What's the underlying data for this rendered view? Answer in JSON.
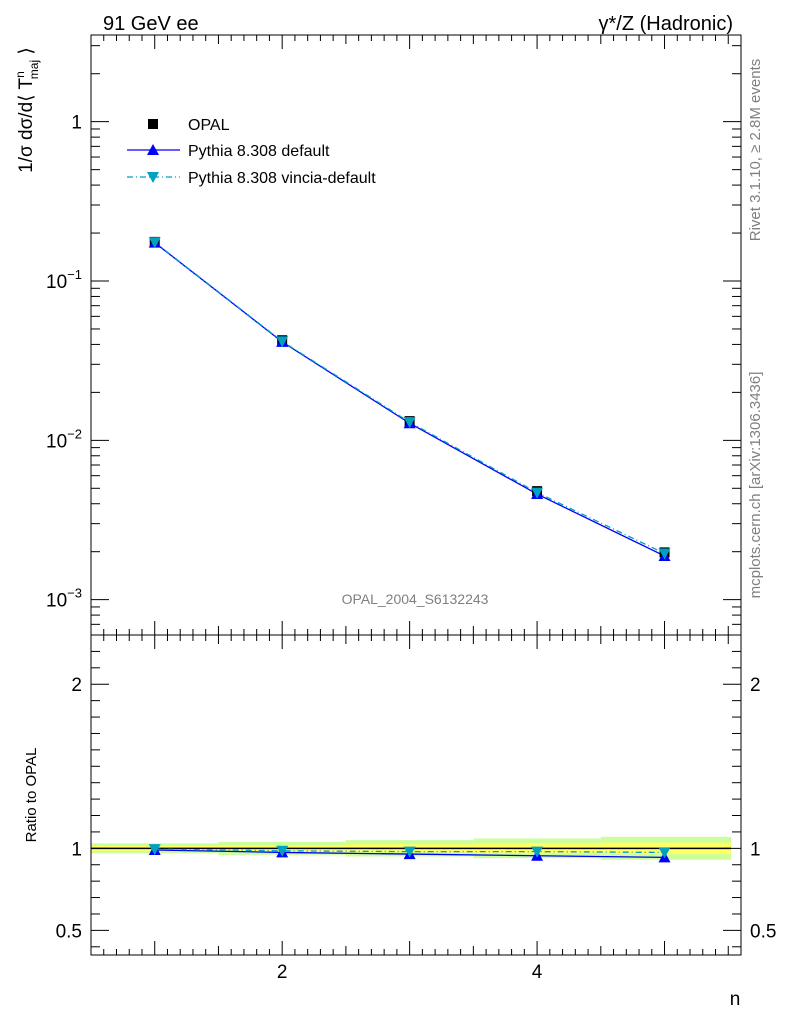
{
  "header": {
    "left": "91 GeV ee",
    "right": "γ*/Z (Hadronic)"
  },
  "side_texts": {
    "rivet": "Rivet 3.1.10, ≥ 2.8M events",
    "mcplots": "mcplots.cern.ch [arXiv:1306.3436]"
  },
  "watermark": "OPAL_2004_S6132243",
  "colors": {
    "opal": "#000000",
    "pythia_default": "#0000ff",
    "pythia_vincia": "#00a0c0",
    "band_inner": "#ffff66",
    "band_outer": "#ccff99"
  },
  "chart_data": [
    {
      "type": "scatter",
      "panel": "main",
      "ylabel": "1/σ dσ/d⟨ T^n_maj ⟩",
      "yscale": "log",
      "ylim": [
        0.0006,
        3.5
      ],
      "xlim": [
        0.5,
        5.6
      ],
      "y_tick_labels": [
        "1",
        "10^-1",
        "10^-2",
        "10^-3"
      ],
      "legend": {
        "placement": "top-left",
        "entries": [
          "OPAL",
          "Pythia 8.308 default",
          "Pythia 8.308 vincia-default"
        ]
      },
      "x": [
        1,
        2,
        3,
        4,
        5
      ],
      "series": [
        {
          "name": "OPAL",
          "marker": "square",
          "values": [
            0.176,
            0.0425,
            0.0132,
            0.0048,
            0.00198
          ]
        },
        {
          "name": "Pythia 8.308 default",
          "marker": "triangle-up",
          "line": "solid",
          "values": [
            0.174,
            0.0415,
            0.0128,
            0.0046,
            0.00188
          ]
        },
        {
          "name": "Pythia 8.308 vincia-default",
          "marker": "triangle-down",
          "line": "dash-dot",
          "values": [
            0.175,
            0.0418,
            0.013,
            0.0047,
            0.00195
          ]
        }
      ]
    },
    {
      "type": "line",
      "panel": "ratio",
      "xlabel": "n",
      "ylabel": "Ratio to OPAL",
      "ylim": [
        0.35,
        2.3
      ],
      "xlim": [
        0.5,
        5.6
      ],
      "x_tick_labels": [
        "2",
        "4"
      ],
      "y_tick_labels": [
        "2",
        "1",
        "0.5"
      ],
      "x": [
        1,
        2,
        3,
        4,
        5
      ],
      "series": [
        {
          "name": "Pythia 8.308 default",
          "values": [
            0.99,
            0.975,
            0.965,
            0.955,
            0.945
          ]
        },
        {
          "name": "Pythia 8.308 vincia-default",
          "values": [
            0.995,
            0.985,
            0.98,
            0.98,
            0.975
          ]
        }
      ],
      "band": {
        "x": [
          1,
          2,
          3,
          4,
          5
        ],
        "inner": [
          0.015,
          0.02,
          0.025,
          0.03,
          0.035
        ],
        "outer": [
          0.03,
          0.04,
          0.05,
          0.06,
          0.07
        ]
      }
    }
  ]
}
